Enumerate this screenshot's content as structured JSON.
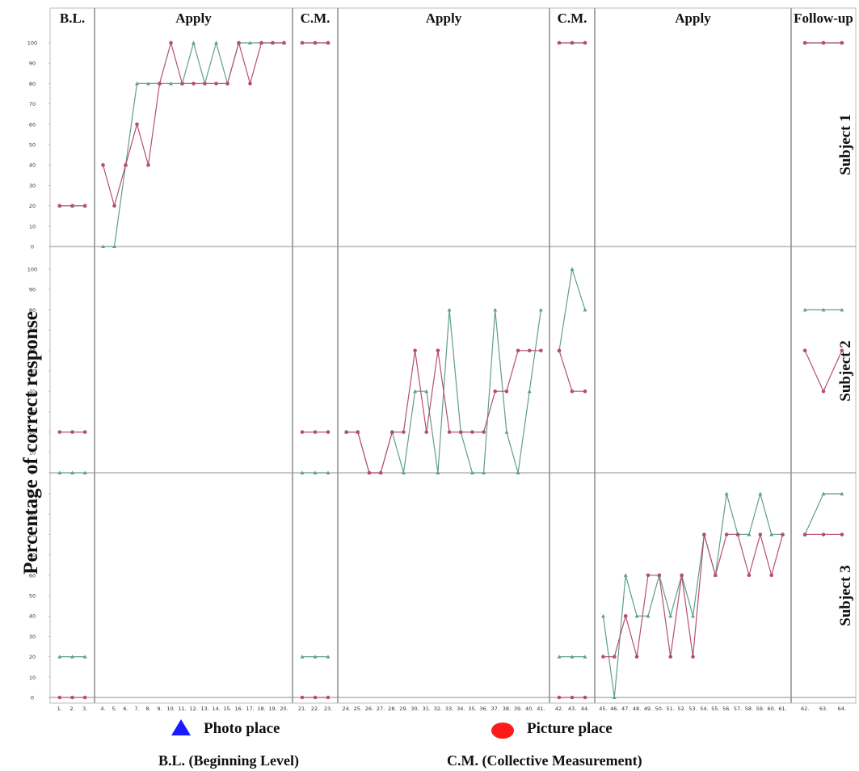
{
  "chart_data": {
    "type": "line",
    "ylabel": "Percentage of correct response",
    "phases": [
      {
        "title": "B.L.",
        "sessions": [
          1,
          3
        ]
      },
      {
        "title": "Apply",
        "sessions": [
          4,
          20
        ]
      },
      {
        "title": "C.M.",
        "sessions": [
          21,
          23
        ]
      },
      {
        "title": "Apply",
        "sessions": [
          24,
          41
        ]
      },
      {
        "title": "C.M.",
        "sessions": [
          42,
          44
        ]
      },
      {
        "title": "Apply",
        "sessions": [
          45,
          61
        ]
      },
      {
        "title": "Follow-up",
        "sessions": [
          62,
          64
        ]
      }
    ],
    "y_ticks": [
      0,
      10,
      20,
      30,
      40,
      50,
      60,
      70,
      80,
      90,
      100
    ],
    "ylim": [
      0,
      100
    ],
    "x_tick_labels": [
      "1.",
      "2.",
      "3.",
      "4.",
      "5.",
      "6.",
      "7.",
      "8.",
      "9.",
      "10.",
      "11.",
      "12.",
      "13.",
      "14.",
      "15.",
      "16.",
      "17.",
      "18.",
      "19.",
      "20.",
      "21.",
      "22.",
      "23.",
      "24.",
      "25.",
      "26.",
      "27.",
      "28.",
      "29.",
      "30.",
      "31.",
      "32.",
      "33.",
      "34.",
      "35.",
      "36.",
      "37.",
      "38.",
      "39.",
      "40.",
      "41.",
      "42.",
      "43.",
      "44.",
      "45.",
      "46.",
      "47.",
      "48.",
      "49.",
      "50.",
      "51.",
      "52.",
      "53.",
      "54.",
      "55.",
      "56.",
      "57.",
      "58.",
      "59.",
      "60.",
      "61.",
      "62.",
      "63.",
      "64."
    ],
    "series_colors": {
      "photo": "#5f9e8f",
      "picture": "#b5506a"
    },
    "panels": [
      {
        "subject": "Subject 1",
        "photo": [
          [
            [
              1,
              20
            ],
            [
              2,
              20
            ],
            [
              3,
              20
            ]
          ],
          [
            [
              4,
              0
            ],
            [
              5,
              0
            ],
            [
              6,
              40
            ],
            [
              7,
              80
            ],
            [
              8,
              80
            ],
            [
              9,
              80
            ],
            [
              10,
              80
            ],
            [
              11,
              80
            ],
            [
              12,
              100
            ],
            [
              13,
              80
            ],
            [
              14,
              100
            ],
            [
              15,
              80
            ],
            [
              16,
              100
            ],
            [
              17,
              100
            ],
            [
              18,
              100
            ],
            [
              19,
              100
            ],
            [
              20,
              100
            ]
          ],
          [
            [
              21,
              100
            ],
            [
              22,
              100
            ],
            [
              23,
              100
            ]
          ],
          [],
          [
            [
              42,
              100
            ],
            [
              43,
              100
            ],
            [
              44,
              100
            ]
          ],
          [],
          [
            [
              62,
              100
            ],
            [
              63,
              100
            ],
            [
              64,
              100
            ]
          ]
        ],
        "picture": [
          [
            [
              1,
              20
            ],
            [
              2,
              20
            ],
            [
              3,
              20
            ]
          ],
          [
            [
              4,
              40
            ],
            [
              5,
              20
            ],
            [
              6,
              40
            ],
            [
              7,
              60
            ],
            [
              8,
              40
            ],
            [
              9,
              80
            ],
            [
              10,
              100
            ],
            [
              11,
              80
            ],
            [
              12,
              80
            ],
            [
              13,
              80
            ],
            [
              14,
              80
            ],
            [
              15,
              80
            ],
            [
              16,
              100
            ],
            [
              17,
              80
            ],
            [
              18,
              100
            ],
            [
              19,
              100
            ],
            [
              20,
              100
            ]
          ],
          [
            [
              21,
              100
            ],
            [
              22,
              100
            ],
            [
              23,
              100
            ]
          ],
          [],
          [
            [
              42,
              100
            ],
            [
              43,
              100
            ],
            [
              44,
              100
            ]
          ],
          [],
          [
            [
              62,
              100
            ],
            [
              63,
              100
            ],
            [
              64,
              100
            ]
          ]
        ]
      },
      {
        "subject": "Subject 2",
        "photo": [
          [
            [
              1,
              0
            ],
            [
              2,
              0
            ],
            [
              3,
              0
            ]
          ],
          [],
          [
            [
              21,
              0
            ],
            [
              22,
              0
            ],
            [
              23,
              0
            ]
          ],
          [
            [
              24,
              20
            ],
            [
              25,
              20
            ],
            [
              26,
              0
            ],
            [
              27,
              0
            ],
            [
              28,
              20
            ],
            [
              29,
              0
            ],
            [
              30,
              40
            ],
            [
              31,
              40
            ],
            [
              32,
              0
            ],
            [
              33,
              80
            ],
            [
              34,
              20
            ],
            [
              35,
              0
            ],
            [
              36,
              0
            ],
            [
              37,
              80
            ],
            [
              38,
              20
            ],
            [
              39,
              0
            ],
            [
              40,
              40
            ],
            [
              41,
              80
            ]
          ],
          [
            [
              42,
              60
            ],
            [
              43,
              100
            ],
            [
              44,
              80
            ]
          ],
          [],
          [
            [
              62,
              80
            ],
            [
              63,
              80
            ],
            [
              64,
              80
            ]
          ]
        ],
        "picture": [
          [
            [
              1,
              20
            ],
            [
              2,
              20
            ],
            [
              3,
              20
            ]
          ],
          [],
          [
            [
              21,
              20
            ],
            [
              22,
              20
            ],
            [
              23,
              20
            ]
          ],
          [
            [
              24,
              20
            ],
            [
              25,
              20
            ],
            [
              26,
              0
            ],
            [
              27,
              0
            ],
            [
              28,
              20
            ],
            [
              29,
              20
            ],
            [
              30,
              60
            ],
            [
              31,
              20
            ],
            [
              32,
              60
            ],
            [
              33,
              20
            ],
            [
              34,
              20
            ],
            [
              35,
              20
            ],
            [
              36,
              20
            ],
            [
              37,
              40
            ],
            [
              38,
              40
            ],
            [
              39,
              60
            ],
            [
              40,
              60
            ],
            [
              41,
              60
            ]
          ],
          [
            [
              42,
              60
            ],
            [
              43,
              40
            ],
            [
              44,
              40
            ]
          ],
          [],
          [
            [
              62,
              60
            ],
            [
              63,
              40
            ],
            [
              64,
              60
            ]
          ]
        ]
      },
      {
        "subject": "Subject 3",
        "photo": [
          [
            [
              1,
              20
            ],
            [
              2,
              20
            ],
            [
              3,
              20
            ]
          ],
          [],
          [
            [
              21,
              20
            ],
            [
              22,
              20
            ],
            [
              23,
              20
            ]
          ],
          [],
          [
            [
              42,
              20
            ],
            [
              43,
              20
            ],
            [
              44,
              20
            ]
          ],
          [
            [
              45,
              40
            ],
            [
              46,
              0
            ],
            [
              47,
              60
            ],
            [
              48,
              40
            ],
            [
              49,
              40
            ],
            [
              50,
              60
            ],
            [
              51,
              40
            ],
            [
              52,
              60
            ],
            [
              53,
              40
            ],
            [
              54,
              80
            ],
            [
              55,
              60
            ],
            [
              56,
              100
            ],
            [
              57,
              80
            ],
            [
              58,
              80
            ],
            [
              59,
              100
            ],
            [
              60,
              80
            ],
            [
              61,
              80
            ]
          ],
          [
            [
              62,
              80
            ],
            [
              63,
              100
            ],
            [
              64,
              100
            ]
          ]
        ],
        "picture": [
          [
            [
              1,
              0
            ],
            [
              2,
              0
            ],
            [
              3,
              0
            ]
          ],
          [],
          [
            [
              21,
              0
            ],
            [
              22,
              0
            ],
            [
              23,
              0
            ]
          ],
          [],
          [
            [
              42,
              0
            ],
            [
              43,
              0
            ],
            [
              44,
              0
            ]
          ],
          [
            [
              45,
              20
            ],
            [
              46,
              20
            ],
            [
              47,
              40
            ],
            [
              48,
              20
            ],
            [
              49,
              60
            ],
            [
              50,
              60
            ],
            [
              51,
              20
            ],
            [
              52,
              60
            ],
            [
              53,
              20
            ],
            [
              54,
              80
            ],
            [
              55,
              60
            ],
            [
              56,
              80
            ],
            [
              57,
              80
            ],
            [
              58,
              60
            ],
            [
              59,
              80
            ],
            [
              60,
              60
            ],
            [
              61,
              80
            ]
          ],
          [
            [
              62,
              80
            ],
            [
              63,
              80
            ],
            [
              64,
              80
            ]
          ]
        ]
      }
    ]
  },
  "legend": {
    "photo_label": "Photo place",
    "picture_label": "Picture place",
    "photo_marker_color": "#1a1aff",
    "picture_marker_color": "#ff1a1a"
  },
  "notes": {
    "bl": "B.L. (Beginning Level)",
    "cm": "C.M. (Collective Measurement)"
  }
}
